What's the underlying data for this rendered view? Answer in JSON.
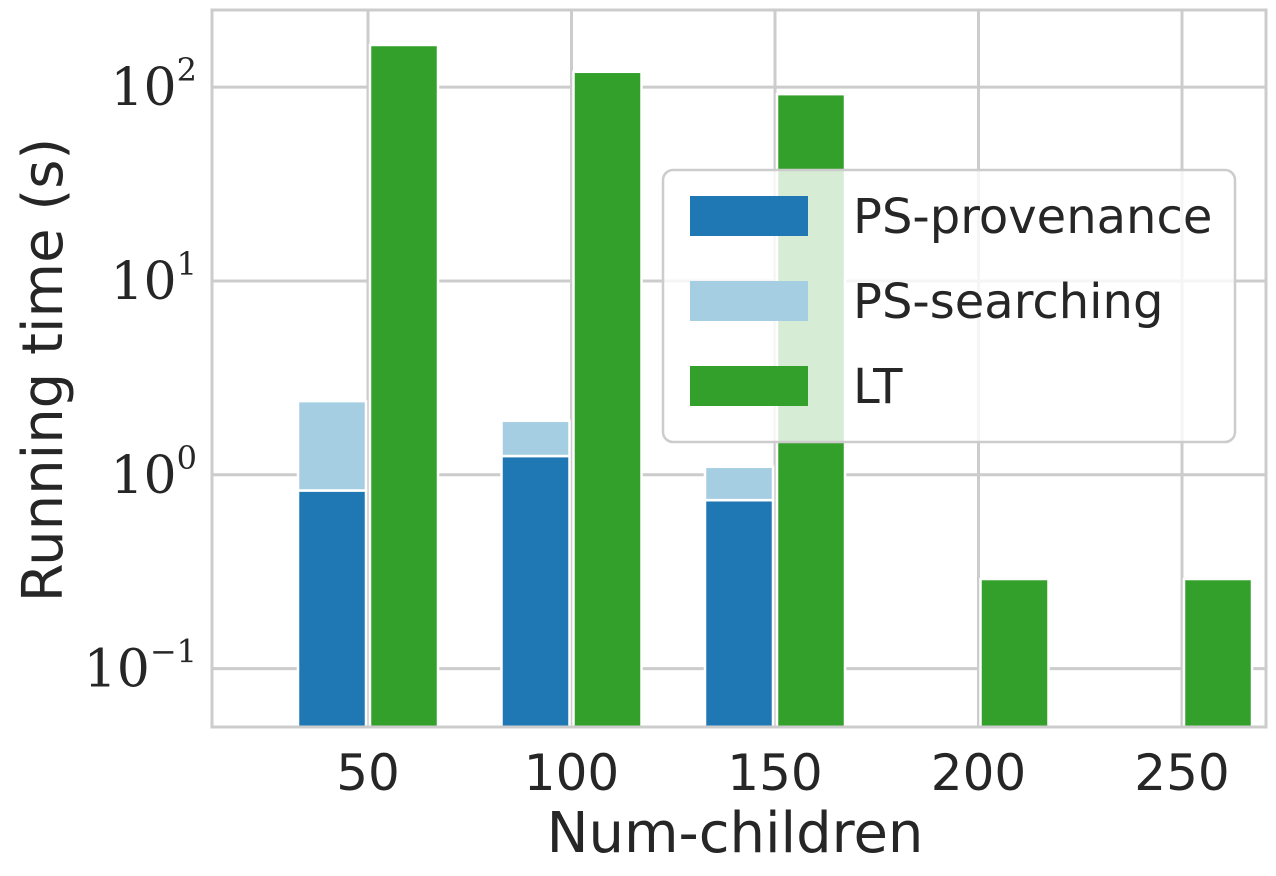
{
  "chart_data": {
    "type": "bar",
    "xlabel": "Num-children",
    "ylabel": "Running time (s)",
    "x": [
      50,
      100,
      150,
      200,
      250
    ],
    "xtick_labels": [
      "50",
      "100",
      "150",
      "200",
      "250"
    ],
    "yscale": "log",
    "ylim": [
      0.05,
      250
    ],
    "yticks": [
      {
        "value": 0.1,
        "base": "10",
        "exp": "−1"
      },
      {
        "value": 1,
        "base": "10",
        "exp": "0"
      },
      {
        "value": 10,
        "base": "10",
        "exp": "1"
      },
      {
        "value": 100,
        "base": "10",
        "exp": "2"
      }
    ],
    "grid": true,
    "legend_position": "center-right",
    "series": [
      {
        "name": "PS-provenance",
        "stack": "PS",
        "color": "#1f77b4",
        "values": [
          0.83,
          1.25,
          0.74,
          null,
          null
        ]
      },
      {
        "name": "PS-searching",
        "stack": "PS",
        "color": "#a6cee3",
        "values": [
          1.57,
          0.65,
          0.36,
          null,
          null
        ]
      },
      {
        "name": "LT",
        "stack": "LT",
        "color": "#33a02c",
        "values": [
          165,
          120,
          92,
          0.29,
          0.29
        ]
      }
    ]
  }
}
